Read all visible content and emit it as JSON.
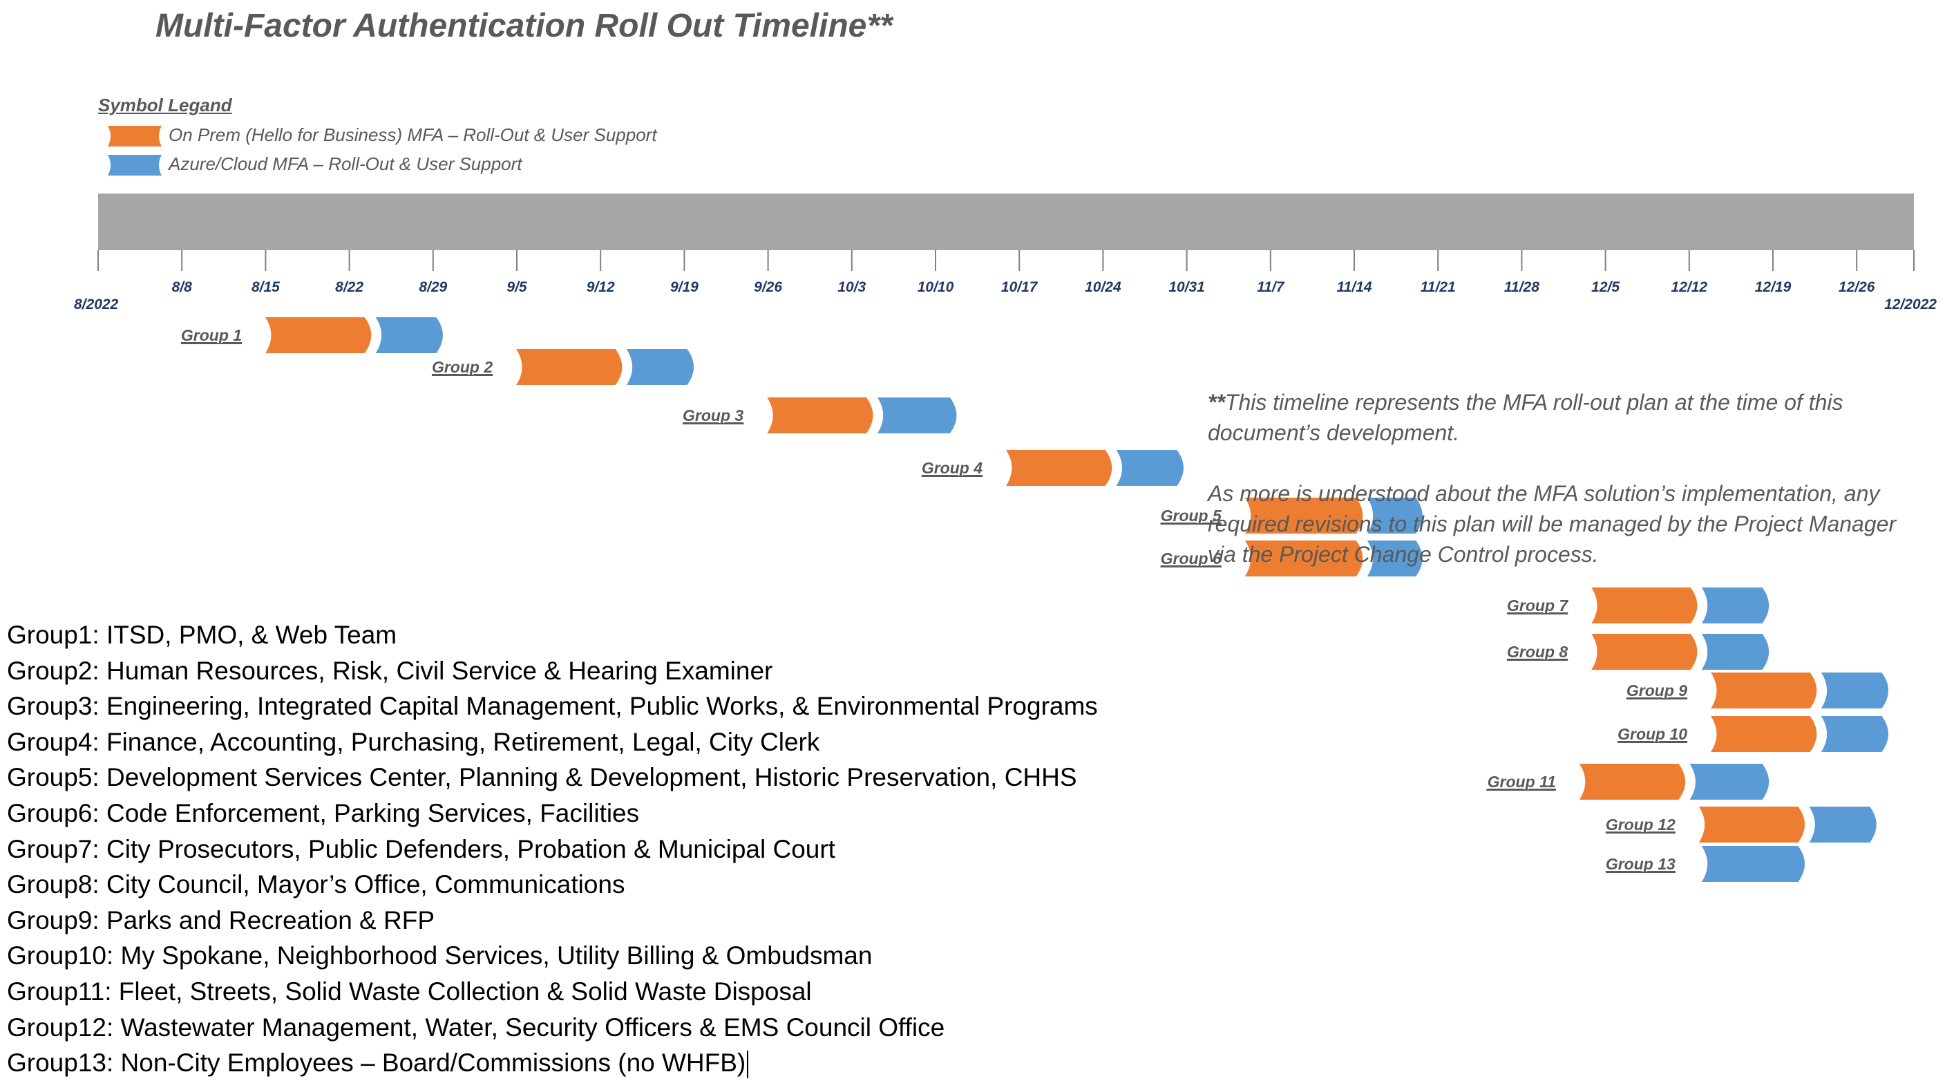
{
  "title": "Multi-Factor Authentication Roll Out Timeline**",
  "legend": {
    "title": "Symbol Legand",
    "items": [
      {
        "label": "On Prem (Hello for Business) MFA – Roll-Out & User Support",
        "color": "#ed7d31"
      },
      {
        "label": "Azure/Cloud MFA – Roll-Out & User Support",
        "color": "#5b9bd5"
      }
    ]
  },
  "axis": {
    "start_label": "8/2022",
    "end_label": "12/2022",
    "ticks": [
      "8/8",
      "8/15",
      "8/22",
      "8/29",
      "9/5",
      "9/12",
      "9/19",
      "9/26",
      "10/3",
      "10/10",
      "10/17",
      "10/24",
      "10/31",
      "11/7",
      "11/14",
      "11/21",
      "11/28",
      "12/5",
      "12/12",
      "12/19",
      "12/26"
    ]
  },
  "chart_data": {
    "type": "gantt",
    "timeline_start": "2022-08-01",
    "timeline_end": "2022-12-31",
    "series": [
      {
        "name": "On Prem (Hello for Business) MFA – Roll-Out & User Support",
        "color": "#ed7d31"
      },
      {
        "name": "Azure/Cloud MFA – Roll-Out & User Support",
        "color": "#5b9bd5"
      }
    ],
    "tasks": [
      {
        "label": "Group 1",
        "onprem": [
          "2022-08-15",
          "2022-08-24"
        ],
        "azure": [
          "2022-08-24",
          "2022-08-30"
        ]
      },
      {
        "label": "Group 2",
        "onprem": [
          "2022-09-05",
          "2022-09-14"
        ],
        "azure": [
          "2022-09-14",
          "2022-09-20"
        ]
      },
      {
        "label": "Group 3",
        "onprem": [
          "2022-09-26",
          "2022-10-05"
        ],
        "azure": [
          "2022-10-05",
          "2022-10-12"
        ]
      },
      {
        "label": "Group 4",
        "onprem": [
          "2022-10-16",
          "2022-10-25"
        ],
        "azure": [
          "2022-10-25",
          "2022-10-31"
        ]
      },
      {
        "label": "Group 5",
        "onprem": [
          "2022-11-05",
          "2022-11-15"
        ],
        "azure": [
          "2022-11-15",
          "2022-11-20"
        ]
      },
      {
        "label": "Group 6",
        "onprem": [
          "2022-11-05",
          "2022-11-15"
        ],
        "azure": [
          "2022-11-15",
          "2022-11-20"
        ]
      },
      {
        "label": "Group 7",
        "onprem": [
          "2022-12-04",
          "2022-12-13"
        ],
        "azure": [
          "2022-12-13",
          "2022-12-19"
        ]
      },
      {
        "label": "Group 8",
        "onprem": [
          "2022-12-04",
          "2022-12-13"
        ],
        "azure": [
          "2022-12-13",
          "2022-12-19"
        ]
      },
      {
        "label": "Group 9",
        "onprem": [
          "2022-12-14",
          "2022-12-23"
        ],
        "azure": [
          "2022-12-23",
          "2022-12-29"
        ]
      },
      {
        "label": "Group 10",
        "onprem": [
          "2022-12-14",
          "2022-12-23"
        ],
        "azure": [
          "2022-12-23",
          "2022-12-29"
        ]
      },
      {
        "label": "Group 11",
        "onprem": [
          "2022-12-03",
          "2022-12-12"
        ],
        "azure": [
          "2022-12-12",
          "2022-12-19"
        ]
      },
      {
        "label": "Group 12",
        "onprem": [
          "2022-12-13",
          "2022-12-22"
        ],
        "azure": [
          "2022-12-22",
          "2022-12-28"
        ]
      },
      {
        "label": "Group 13",
        "onprem": null,
        "azure": [
          "2022-12-13",
          "2022-12-22"
        ]
      }
    ]
  },
  "note": {
    "stars": "**",
    "paragraph1": "This timeline represents the MFA roll-out plan at the time of this document’s development.",
    "paragraph2": "As more is understood about the MFA solution’s implementation, any required revisions to this plan will be managed by the Project Manager via the Project Change Control process."
  },
  "groups": [
    {
      "name": "Group1",
      "desc": ": ITSD, PMO, & Web Team"
    },
    {
      "name": "Group2",
      "desc": ": Human Resources, Risk, Civil Service & Hearing Examiner"
    },
    {
      "name": "Group3",
      "desc": ": Engineering, Integrated Capital Management, Public Works, & Environmental Programs"
    },
    {
      "name": "Group4",
      "desc": ": Finance, Accounting, Purchasing, Retirement, Legal, City Clerk"
    },
    {
      "name": "Group5",
      "desc": ": Development Services Center, Planning & Development, Historic Preservation, CHHS"
    },
    {
      "name": "Group6",
      "desc": ": Code Enforcement, Parking Services, Facilities"
    },
    {
      "name": "Group7",
      "desc": ": City Prosecutors, Public Defenders, Probation & Municipal Court"
    },
    {
      "name": "Group8",
      "desc": ": City Council, Mayor’s Office, Communications"
    },
    {
      "name": "Group9",
      "desc": ": Parks and Recreation & RFP"
    },
    {
      "name": "Group10",
      "desc": ": My Spokane, Neighborhood Services, Utility Billing & Ombudsman"
    },
    {
      "name": "Group11",
      "desc": ": Fleet, Streets, Solid Waste Collection & Solid Waste Disposal"
    },
    {
      "name": "Group12",
      "desc": ": Wastewater Management, Water, Security Officers & EMS Council Office"
    },
    {
      "name": "Group13",
      "desc": ": Non-City Employees – Board/Commissions (no WHFB)"
    }
  ]
}
